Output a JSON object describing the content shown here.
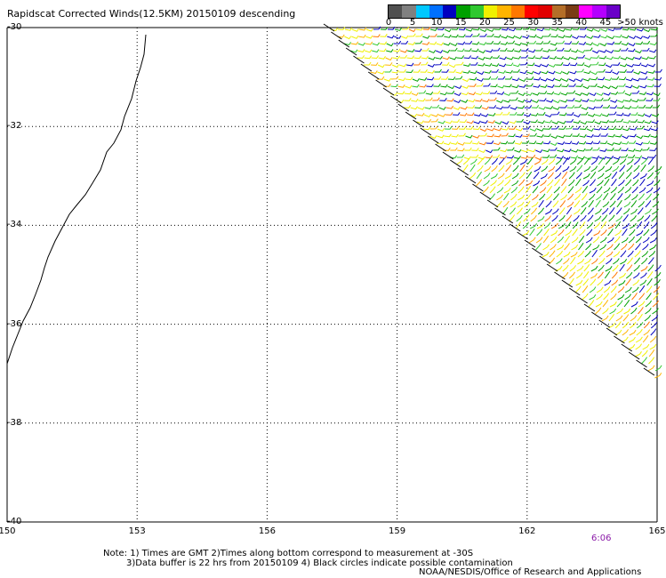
{
  "title": "Rapidscat Corrected Winds(12.5KM) 20150109 descending",
  "legend": {
    "labels": [
      "0",
      "5",
      "10",
      "15",
      "20",
      "25",
      "30",
      "35",
      "40",
      "45",
      ">50 knots"
    ],
    "colors": [
      "#505050",
      "#808080",
      "#00c8ff",
      "#0070ff",
      "#0000c0",
      "#00a000",
      "#30c830",
      "#f0f000",
      "#ffb400",
      "#ff7800",
      "#ff0000",
      "#e00000",
      "#b46e28",
      "#7a3c14",
      "#ff00ff",
      "#b400ff",
      "#6a00c8"
    ]
  },
  "axes": {
    "x_labels": [
      "150",
      "153",
      "156",
      "159",
      "162",
      "165"
    ],
    "y_labels": [
      "-30",
      "-32",
      "-34",
      "-36",
      "-38",
      "-40"
    ],
    "lon_range": [
      150,
      165
    ],
    "lat_range": [
      -40,
      -30
    ]
  },
  "time_label": "6:06",
  "notes": {
    "line1": "Note: 1) Times are GMT 2)Times along bottom correspond to measurement at -30S",
    "line2": "3)Data buffer is 22 hrs from 20150109 4) Black circles indicate possible contamination"
  },
  "credit": "NOAA/NESDIS/Office of Research and Applications",
  "colors": {
    "grid": "#000000",
    "coast": "#000000",
    "timestamp": "#8a1aa8"
  }
}
